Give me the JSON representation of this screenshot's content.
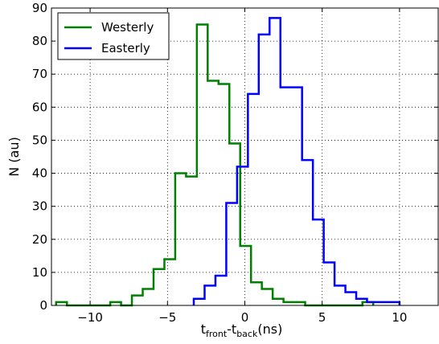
{
  "chart_data": {
    "type": "histogram",
    "xlabel": {
      "base": "t",
      "sub1": "front",
      "mid": "-t",
      "sub2": "back",
      "suffix": "(ns)"
    },
    "ylabel": "N (au)",
    "xlim": [
      -12.5,
      12.5
    ],
    "ylim": [
      0,
      90
    ],
    "xticks": [
      -10,
      -5,
      0,
      5,
      10
    ],
    "xtick_labels": [
      "−10",
      "−5",
      "0",
      "5",
      "10"
    ],
    "yticks": [
      0,
      10,
      20,
      30,
      40,
      50,
      60,
      70,
      80,
      90
    ],
    "ytick_labels": [
      "0",
      "10",
      "20",
      "30",
      "40",
      "50",
      "60",
      "70",
      "80",
      "90"
    ],
    "grid": true,
    "legend_position": "top-left",
    "series": [
      {
        "name": "Westerly",
        "color": "#008000",
        "bins": [
          [
            -12.2,
            -11.5,
            1
          ],
          [
            -11.5,
            -8.7,
            0
          ],
          [
            -8.7,
            -8.0,
            1
          ],
          [
            -8.0,
            -7.3,
            0
          ],
          [
            -7.3,
            -6.6,
            3
          ],
          [
            -6.6,
            -5.9,
            5
          ],
          [
            -5.9,
            -5.2,
            11
          ],
          [
            -5.2,
            -4.5,
            14
          ],
          [
            -4.5,
            -3.8,
            40
          ],
          [
            -3.8,
            -3.1,
            39
          ],
          [
            -3.1,
            -2.4,
            85
          ],
          [
            -2.4,
            -1.7,
            68
          ],
          [
            -1.7,
            -1.0,
            67
          ],
          [
            -1.0,
            -0.3,
            49
          ],
          [
            -0.3,
            0.4,
            18
          ],
          [
            0.4,
            1.1,
            7
          ],
          [
            1.1,
            1.8,
            5
          ],
          [
            1.8,
            2.5,
            2
          ],
          [
            2.5,
            3.2,
            1
          ],
          [
            3.2,
            3.9,
            1
          ],
          [
            3.9,
            7.6,
            0
          ],
          [
            7.6,
            8.3,
            1
          ]
        ]
      },
      {
        "name": "Easterly",
        "color": "#0000ff",
        "bins": [
          [
            -3.3,
            -2.6,
            2
          ],
          [
            -2.6,
            -1.9,
            6
          ],
          [
            -1.9,
            -1.2,
            9
          ],
          [
            -1.2,
            -0.5,
            31
          ],
          [
            -0.5,
            0.2,
            42
          ],
          [
            0.2,
            0.9,
            64
          ],
          [
            0.9,
            1.6,
            82
          ],
          [
            1.6,
            2.3,
            87
          ],
          [
            2.3,
            3.0,
            66
          ],
          [
            3.0,
            3.7,
            66
          ],
          [
            3.7,
            4.4,
            44
          ],
          [
            4.4,
            5.1,
            26
          ],
          [
            5.1,
            5.8,
            13
          ],
          [
            5.8,
            6.5,
            6
          ],
          [
            6.5,
            7.2,
            4
          ],
          [
            7.2,
            7.9,
            2
          ],
          [
            7.9,
            8.6,
            1
          ],
          [
            8.6,
            9.3,
            1
          ],
          [
            9.3,
            10.0,
            1
          ]
        ]
      }
    ]
  }
}
